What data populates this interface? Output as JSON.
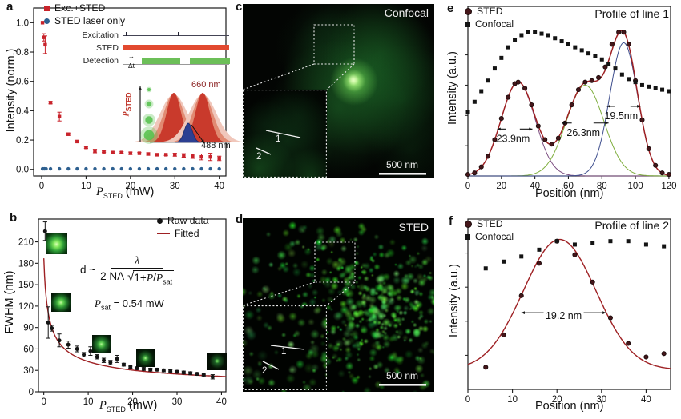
{
  "figure_bg": "#ffffff",
  "palette": {
    "red_marker": "#c8232b",
    "blue_marker": "#2e6090",
    "fit_dark_red": "#9e2023",
    "black_marker": "#141414",
    "dark_circle": "#45161a",
    "comp_purple": "#7b4d80",
    "comp_green": "#7fae3e",
    "comp_blue": "#3f4f8e",
    "timing_red": "#e2492f",
    "timing_green": "#6cbf58",
    "micro_green": "#46c24e"
  },
  "panels": {
    "a": {
      "letter": "a",
      "timing": {
        "rows": [
          "Excitation",
          "STED",
          "Detection"
        ],
        "dt": "Δt",
        "dt_arrow": "→"
      },
      "spectra": {
        "axis_p": "P",
        "axis_sub": "STED",
        "peak_label": "660 nm",
        "dip_label": "488 nm"
      }
    },
    "b": {
      "letter": "b",
      "formula": {
        "lead": "d ~",
        "num": "λ",
        "den_pre": "2 NA",
        "sqrt_sym": "√",
        "rad_pre": "1+",
        "p1": "P",
        "slash": "/",
        "p2": "P",
        "p2sub": "sat"
      },
      "psat": {
        "p": "P",
        "sub": "sat",
        "rest": " = 0.54 mW"
      }
    },
    "c": {
      "letter": "c",
      "title": "Confocal",
      "scale": "500 nm",
      "line1": "1",
      "line2": "2"
    },
    "d": {
      "letter": "d",
      "title": "STED",
      "scale": "500 nm",
      "line1": "1",
      "line2": "2"
    },
    "e": {
      "letter": "e",
      "title": "Profile of line 1"
    },
    "f": {
      "letter": "f",
      "title": "Profile of line 2"
    }
  },
  "chart_data": [
    {
      "id": "a",
      "type": "scatter",
      "xlabel_parts": {
        "p": "P",
        "sub": "STED",
        "unit": " (mW)"
      },
      "ylabel": "Intensity (norm.)",
      "xlim": [
        -1.8,
        41.5
      ],
      "ylim": [
        -0.045,
        1.1
      ],
      "grid": false,
      "xticks": {
        "values": [
          0,
          10,
          20,
          30,
          40
        ],
        "labels": [
          "0",
          "10",
          "20",
          "30",
          "40"
        ]
      },
      "yticks": {
        "values": [
          0,
          0.2,
          0.4,
          0.6,
          0.8,
          1.0
        ],
        "labels": [
          "0.0",
          "0.2",
          "0.4",
          "0.6",
          "0.8",
          "1.0"
        ]
      },
      "series": [
        {
          "name": "Exc.+STED",
          "marker": "square",
          "color": "#c8232b",
          "size": 4.4,
          "x": [
            0.2,
            0.5,
            0.8,
            2,
            4,
            6,
            8,
            10,
            12,
            14,
            16,
            18,
            20,
            22,
            24,
            26,
            28,
            30,
            32,
            34,
            36,
            38,
            40
          ],
          "y": [
            1.0,
            0.9,
            0.85,
            0.455,
            0.36,
            0.24,
            0.19,
            0.15,
            0.125,
            0.12,
            0.115,
            0.115,
            0.11,
            0.11,
            0.105,
            0.1,
            0.1,
            0.1,
            0.095,
            0.09,
            0.085,
            0.085,
            0.075
          ],
          "err": [
            0,
            0.025,
            0.06,
            0.008,
            0.03,
            0.008,
            0.006,
            0.006,
            0.012,
            0.005,
            0.005,
            0.005,
            0.008,
            0.005,
            0.008,
            0.005,
            0.005,
            0.01,
            0.012,
            0.015,
            0.02,
            0.025,
            0.015
          ]
        },
        {
          "name": "STED laser only",
          "marker": "circle",
          "color": "#2e6090",
          "size": 4.4,
          "x": [
            0.2,
            0.6,
            1,
            2,
            4,
            6,
            8,
            10,
            12,
            14,
            16,
            18,
            20,
            22,
            24,
            26,
            28,
            30,
            32,
            34,
            36,
            38,
            40
          ],
          "y": [
            0.004,
            0.004,
            0.004,
            0.004,
            0.004,
            0.004,
            0.004,
            0.004,
            0.004,
            0.004,
            0.004,
            0.004,
            0.004,
            0.004,
            0.004,
            0.004,
            0.004,
            0.004,
            0.004,
            0.004,
            0.004,
            0.004,
            0.004
          ]
        }
      ]
    },
    {
      "id": "b",
      "type": "scatter",
      "xlabel_parts": {
        "p": "P",
        "sub": "STED",
        "unit": " (mW)"
      },
      "ylabel": "FWHM (nm)",
      "xlim": [
        -1.2,
        41
      ],
      "ylim": [
        0,
        242
      ],
      "grid": false,
      "xticks": {
        "values": [
          0,
          10,
          20,
          30,
          40
        ],
        "labels": [
          "0",
          "10",
          "20",
          "30",
          "40"
        ]
      },
      "yticks": {
        "values": [
          0,
          30,
          60,
          90,
          120,
          150,
          180,
          210
        ],
        "labels": [
          "0",
          "30",
          "60",
          "90",
          "120",
          "150",
          "180",
          "210"
        ]
      },
      "fit": {
        "name": "Fitted",
        "kind": "saturation",
        "color": "#9e2023",
        "d0_nm": 187,
        "psat_mW": 0.54
      },
      "series": [
        {
          "name": "Raw data",
          "marker": "circle",
          "color": "#141414",
          "size": 5,
          "x": [
            0.3,
            1,
            1.8,
            3.5,
            5.5,
            7.5,
            9,
            10.5,
            12,
            13.5,
            15,
            16.5,
            18,
            19.5,
            21,
            22.5,
            24,
            25.5,
            27,
            28.5,
            30,
            31.5,
            33,
            34.5,
            36,
            38
          ],
          "y": [
            225,
            97,
            89,
            72,
            66,
            60,
            52,
            57,
            49,
            44,
            41,
            46,
            38,
            35,
            33,
            32,
            31,
            31,
            30,
            29,
            28,
            27,
            26,
            25,
            24,
            21
          ],
          "err": [
            13,
            22,
            4,
            9,
            5,
            4,
            3,
            6,
            3,
            3,
            3,
            5,
            2,
            2,
            2,
            2,
            2,
            2,
            2,
            2,
            2,
            2,
            2,
            2,
            2,
            3
          ]
        }
      ]
    },
    {
      "id": "e",
      "type": "scatter",
      "title": "Profile of line 1",
      "xlabel": "Position (nm)",
      "ylabel": "Intensity (a.u.)",
      "xlim": [
        0,
        121
      ],
      "ylim": [
        0,
        1.12
      ],
      "grid": false,
      "xticks": {
        "values": [
          0,
          20,
          40,
          60,
          80,
          100,
          120
        ],
        "labels": [
          "0",
          "20",
          "40",
          "60",
          "80",
          "100",
          "120"
        ]
      },
      "yticks_minor": [
        0.2,
        0.4,
        0.6,
        0.8,
        1.0
      ],
      "sum_color": "#9e2023",
      "components": [
        {
          "amplitude": 0.62,
          "center_nm": 30,
          "fwhm_nm": 23.9,
          "color": "#7b4d80"
        },
        {
          "amplitude": 0.6,
          "center_nm": 70,
          "fwhm_nm": 26.3,
          "color": "#7fae3e"
        },
        {
          "amplitude": 0.88,
          "center_nm": 93,
          "fwhm_nm": 19.5,
          "color": "#3f4f8e"
        }
      ],
      "annotations": [
        {
          "label": "23.9nm",
          "tipL": 17.5,
          "inL": 22.5,
          "tipR": 38.5,
          "inR": 31,
          "ay": 0.31,
          "tx": 27,
          "ty": 0.245
        },
        {
          "label": "26.3nm",
          "tipL": 56,
          "inL": 62,
          "tipR": 84,
          "inR": 75,
          "ay": 0.35,
          "tx": 69,
          "ty": 0.285
        },
        {
          "label": "19.5nm",
          "tipL": 83,
          "inL": 87.5,
          "tipR": 103,
          "inR": 97,
          "ay": 0.46,
          "tx": 91.5,
          "ty": 0.395
        }
      ],
      "series": [
        {
          "name": "STED",
          "marker": "circle",
          "color": "#45161a",
          "edge": "#1c0c0c",
          "size": 5.2,
          "x": [
            0,
            4,
            8,
            12,
            16,
            20,
            24,
            28,
            30,
            34,
            38,
            42,
            46,
            50,
            54,
            58,
            62,
            66,
            70,
            74,
            78,
            82,
            86,
            90,
            93,
            96,
            100,
            104,
            108,
            112,
            116,
            120
          ],
          "y": [
            0.01,
            0.02,
            0.06,
            0.13,
            0.24,
            0.38,
            0.52,
            0.61,
            0.62,
            0.58,
            0.47,
            0.33,
            0.24,
            0.21,
            0.25,
            0.35,
            0.47,
            0.57,
            0.62,
            0.63,
            0.65,
            0.72,
            0.87,
            0.95,
            0.95,
            0.87,
            0.63,
            0.37,
            0.18,
            0.07,
            0.02,
            0.01
          ]
        },
        {
          "name": "Confocal",
          "marker": "square",
          "color": "#141414",
          "size": 5,
          "x": [
            0,
            4,
            8,
            12,
            16,
            20,
            24,
            28,
            32,
            36,
            40,
            44,
            48,
            52,
            56,
            60,
            64,
            68,
            72,
            76,
            80,
            84,
            88,
            92,
            96,
            100,
            104,
            108,
            112,
            116,
            120
          ],
          "y": [
            0.42,
            0.49,
            0.56,
            0.63,
            0.71,
            0.78,
            0.85,
            0.9,
            0.93,
            0.95,
            0.95,
            0.94,
            0.93,
            0.91,
            0.89,
            0.87,
            0.85,
            0.83,
            0.81,
            0.79,
            0.77,
            0.74,
            0.71,
            0.67,
            0.64,
            0.62,
            0.6,
            0.59,
            0.58,
            0.57,
            0.56
          ]
        }
      ]
    },
    {
      "id": "f",
      "type": "scatter",
      "title": "Profile of line 2",
      "xlabel": "Position (nm)",
      "ylabel": "Intensity (a.u.)",
      "xlim": [
        0,
        45.5
      ],
      "ylim": [
        0,
        1.0
      ],
      "grid": false,
      "xticks": {
        "values": [
          0,
          10,
          20,
          30,
          40
        ],
        "labels": [
          "0",
          "10",
          "20",
          "30",
          "40"
        ]
      },
      "yticks_minor": [
        0.2,
        0.4,
        0.6,
        0.8
      ],
      "fit": {
        "kind": "gaussian",
        "color": "#9e2023",
        "base": 0.115,
        "amplitude": 0.765,
        "center_nm": 20.6,
        "fwhm_nm": 19.2
      },
      "annotations": [
        {
          "label": "19.2 nm",
          "tipL": 12,
          "inL": 17,
          "tipR": 31,
          "inR": 26,
          "ay": 0.45,
          "tx": 21.5,
          "ty": 0.431
        }
      ],
      "series": [
        {
          "name": "STED",
          "marker": "circle",
          "color": "#45161a",
          "edge": "#1c0c0c",
          "size": 5.2,
          "x": [
            4,
            8,
            12,
            16,
            20,
            24,
            28,
            32,
            36,
            40,
            44
          ],
          "y": [
            0.13,
            0.32,
            0.55,
            0.74,
            0.87,
            0.79,
            0.63,
            0.42,
            0.27,
            0.19,
            0.21
          ]
        },
        {
          "name": "Confocal",
          "marker": "square",
          "color": "#141414",
          "size": 5,
          "x": [
            4,
            8,
            12,
            16,
            20,
            24,
            28,
            32,
            36,
            40,
            44
          ],
          "y": [
            0.71,
            0.75,
            0.78,
            0.82,
            0.87,
            0.85,
            0.86,
            0.87,
            0.87,
            0.85,
            0.84
          ]
        }
      ]
    }
  ]
}
